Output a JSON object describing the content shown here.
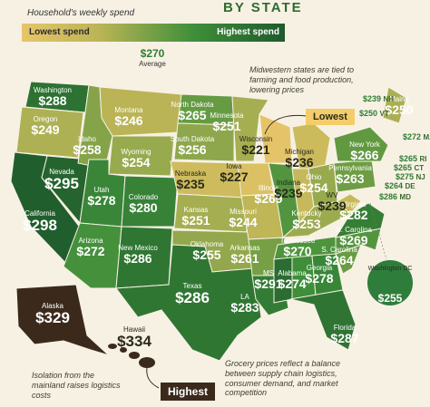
{
  "header": {
    "subtitle": "BY STATE",
    "legend_title": "Household's weekly spend"
  },
  "legend": {
    "low_label": "Lowest spend",
    "high_label": "Highest spend",
    "low_color": "#e7c56a",
    "high_color": "#1f5a2c"
  },
  "average": {
    "value": "$270",
    "label": "Average"
  },
  "callouts": {
    "midwest": "Midwestern states are tied to farming and food production, lowering prices",
    "alaska": "Isolation from the mainland raises logistics costs",
    "grocery": "Grocery prices reflect a balance between supply chain logistics, consumer demand, and market competition"
  },
  "tags": {
    "lowest": "Lowest",
    "highest": "Highest"
  },
  "states": [
    {
      "name": "Washington",
      "value": "$288"
    },
    {
      "name": "Oregon",
      "value": "$249"
    },
    {
      "name": "California",
      "value": "$298"
    },
    {
      "name": "Nevada",
      "value": "$295"
    },
    {
      "name": "Idaho",
      "value": "$258"
    },
    {
      "name": "Montana",
      "value": "$246"
    },
    {
      "name": "Wyoming",
      "value": "$254"
    },
    {
      "name": "Utah",
      "value": "$278"
    },
    {
      "name": "Colorado",
      "value": "$280"
    },
    {
      "name": "Arizona",
      "value": "$272"
    },
    {
      "name": "New Mexico",
      "value": "$286"
    },
    {
      "name": "North Dakota",
      "value": "$265"
    },
    {
      "name": "South Dakota",
      "value": "$256"
    },
    {
      "name": "Nebraska",
      "value": "$235"
    },
    {
      "name": "Kansas",
      "value": "$251"
    },
    {
      "name": "Oklahoma",
      "value": "$255"
    },
    {
      "name": "Texas",
      "value": "$286"
    },
    {
      "name": "Minnesota",
      "value": "$251"
    },
    {
      "name": "Iowa",
      "value": "$227"
    },
    {
      "name": "Missouri",
      "value": "$244"
    },
    {
      "name": "Arkansas",
      "value": "$261"
    },
    {
      "name": "LA",
      "value": "$283"
    },
    {
      "name": "Wisconsin",
      "value": "$221"
    },
    {
      "name": "Illinois",
      "value": "$269"
    },
    {
      "name": "Michigan",
      "value": "$236"
    },
    {
      "name": "Indiana",
      "value": "$239"
    },
    {
      "name": "Ohio",
      "value": "$254"
    },
    {
      "name": "Kentucky",
      "value": "$253"
    },
    {
      "name": "Tennessee",
      "value": "$270"
    },
    {
      "name": "MS",
      "value": "$291"
    },
    {
      "name": "Alabama",
      "value": "$274"
    },
    {
      "name": "Georgia",
      "value": "$278"
    },
    {
      "name": "Florida",
      "value": "$287"
    },
    {
      "name": "S. Carolina",
      "value": "$264"
    },
    {
      "name": "N. Carolina",
      "value": "$269"
    },
    {
      "name": "Virginia",
      "value": "$282"
    },
    {
      "name": "WV",
      "value": "$239"
    },
    {
      "name": "Pennsylvania",
      "value": "$263"
    },
    {
      "name": "New York",
      "value": "$266"
    },
    {
      "name": "Maine",
      "value": "$250"
    },
    {
      "name": "Alaska",
      "value": "$329"
    },
    {
      "name": "Hawaii",
      "value": "$334"
    }
  ],
  "small_states": [
    {
      "name": "NH",
      "value": "$239"
    },
    {
      "name": "VT",
      "value": "$250"
    },
    {
      "name": "MA",
      "value": "$272"
    },
    {
      "name": "RI",
      "value": "$265"
    },
    {
      "name": "CT",
      "value": "$265"
    },
    {
      "name": "NJ",
      "value": "$275"
    },
    {
      "name": "DE",
      "value": "$264"
    },
    {
      "name": "MD",
      "value": "$286"
    }
  ],
  "dc": {
    "name": "Washington DC",
    "value": "$255"
  }
}
